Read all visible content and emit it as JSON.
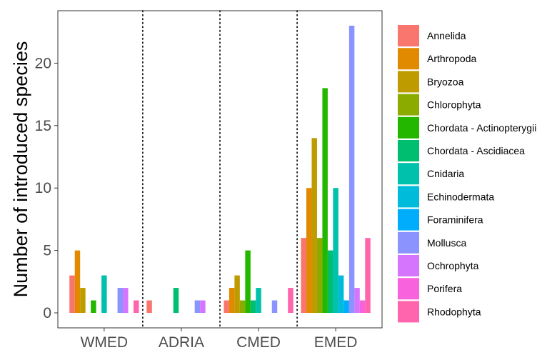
{
  "chart_data": {
    "type": "bar",
    "title": "",
    "xlabel": "",
    "ylabel": "Number of introduced species",
    "ylim": [
      -1.2,
      24.2
    ],
    "yticks": [
      0,
      5,
      10,
      15,
      20
    ],
    "grid": false,
    "legend_position": "right",
    "categories": [
      "WMED",
      "ADRIA",
      "CMED",
      "EMED"
    ],
    "series": [
      {
        "name": "Annelida",
        "color": "#F8766D",
        "values": [
          3,
          1,
          1,
          6
        ]
      },
      {
        "name": "Arthropoda",
        "color": "#E18A00",
        "values": [
          5,
          0,
          2,
          10
        ]
      },
      {
        "name": "Bryozoa",
        "color": "#BE9C00",
        "values": [
          2,
          0,
          3,
          14
        ]
      },
      {
        "name": "Chlorophyta",
        "color": "#8CAB00",
        "values": [
          0,
          0,
          1,
          6
        ]
      },
      {
        "name": "Chordata - Actinopterygii",
        "color": "#24B700",
        "values": [
          1,
          0,
          5,
          18
        ]
      },
      {
        "name": "Chordata - Ascidiacea",
        "color": "#00BE70",
        "values": [
          0,
          2,
          1,
          5
        ]
      },
      {
        "name": "Cnidaria",
        "color": "#00C1AB",
        "values": [
          3,
          0,
          2,
          10
        ]
      },
      {
        "name": "Echinodermata",
        "color": "#00BBDA",
        "values": [
          0,
          0,
          0,
          3
        ]
      },
      {
        "name": "Foraminifera",
        "color": "#00ACFC",
        "values": [
          0,
          0,
          0,
          1
        ]
      },
      {
        "name": "Mollusca",
        "color": "#8B93FF",
        "values": [
          2,
          1,
          1,
          23
        ]
      },
      {
        "name": "Ochrophyta",
        "color": "#D575FE",
        "values": [
          2,
          1,
          0,
          2
        ]
      },
      {
        "name": "Porifera",
        "color": "#F962DD",
        "values": [
          0,
          0,
          0,
          1
        ]
      },
      {
        "name": "Rhodophyta",
        "color": "#FF65AC",
        "values": [
          1,
          0,
          2,
          6
        ]
      }
    ],
    "separators": "dotted vertical lines between categories"
  }
}
